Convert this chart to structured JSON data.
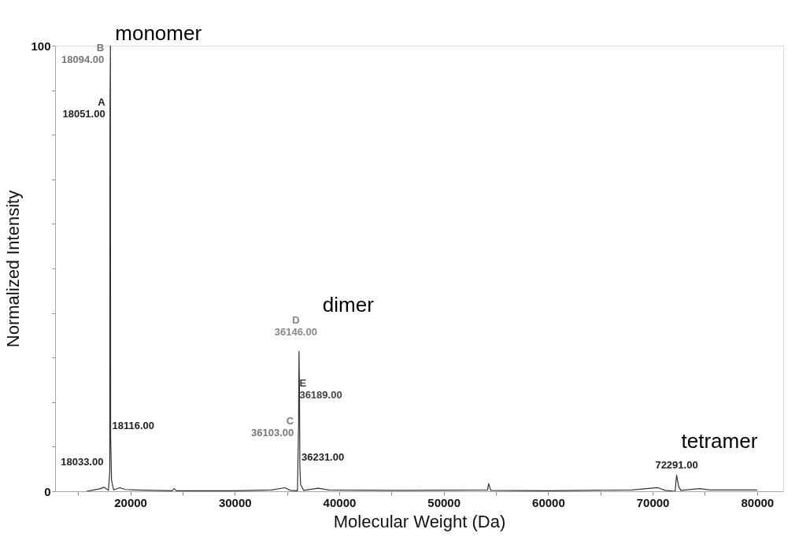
{
  "chart_data": {
    "type": "line",
    "xlabel": "Molecular Weight (Da)",
    "ylabel": "Normalized Intensity",
    "x": [
      15800,
      16500,
      17000,
      17500,
      17900,
      18033,
      18051,
      18094,
      18116,
      18200,
      18400,
      19000,
      19500,
      20500,
      24000,
      24200,
      24400,
      30000,
      33500,
      34800,
      35300,
      36000,
      36103,
      36146,
      36189,
      36231,
      36300,
      36600,
      38000,
      39000,
      45000,
      54200,
      54300,
      54500,
      60000,
      68000,
      70500,
      71200,
      72150,
      72291,
      72500,
      72700,
      74500,
      75500,
      80000
    ],
    "series": [
      {
        "color": "#333333",
        "values": [
          0,
          0.3,
          0.5,
          0.9,
          0.2,
          4.6,
          86,
          100,
          12.4,
          2.5,
          0.3,
          0.8,
          0.4,
          0.3,
          0.1,
          0.6,
          0.1,
          0.1,
          0.3,
          0.8,
          0.2,
          0.1,
          14.5,
          31.4,
          23.6,
          5.3,
          1.5,
          0.2,
          0.7,
          0.3,
          0.2,
          0.3,
          1.7,
          0.2,
          0.1,
          0.3,
          0.8,
          0.2,
          0,
          3.6,
          1,
          0.2,
          0.6,
          0.3,
          0.3
        ]
      }
    ],
    "xlim": [
      12800,
      82500
    ],
    "xticks": [
      {
        "value": 15000,
        "label": null
      },
      20000,
      {
        "value": 25000,
        "label": null
      },
      30000,
      {
        "value": 35000,
        "label": null
      },
      40000,
      {
        "value": 45000,
        "label": null
      },
      50000,
      {
        "value": 55000,
        "label": null
      },
      60000,
      {
        "value": 65000,
        "label": null
      },
      70000,
      {
        "value": 75000,
        "label": null
      },
      80000
    ],
    "ylim": [
      0,
      100
    ],
    "yticks": [
      0,
      {
        "value": 10,
        "label": null
      },
      {
        "value": 20,
        "label": null
      },
      {
        "value": 30,
        "label": null
      },
      {
        "value": 40,
        "label": null
      },
      {
        "value": 50,
        "label": null
      },
      {
        "value": 60,
        "label": null
      },
      {
        "value": 70,
        "label": null
      },
      {
        "value": 80,
        "label": null
      },
      {
        "value": 90,
        "label": null
      },
      100
    ],
    "grid": false,
    "marker": "none",
    "line_style": "solid",
    "annotations": [
      {
        "text": "B\n18094.00",
        "x": 18094,
        "y": 100
      },
      {
        "text": "A\n18051.00",
        "x": 18051,
        "y": 86
      },
      {
        "text": "18116.00",
        "x": 18116,
        "y": 12.4
      },
      {
        "text": "18033.00",
        "x": 18033,
        "y": 4.6
      },
      {
        "text": "C\n36103.00",
        "x": 36103,
        "y": 14.5
      },
      {
        "text": "D\n36146.00",
        "x": 36146,
        "y": 31.4
      },
      {
        "text": "E\n36189.00",
        "x": 36189,
        "y": 23.6
      },
      {
        "text": "36231.00",
        "x": 36231,
        "y": 5.3
      },
      {
        "text": "72291.00",
        "x": 72291,
        "y": 3.6
      },
      {
        "text": "monomer",
        "x": 18094,
        "y": 100
      },
      {
        "text": "dimer",
        "x": 36146,
        "y": 31.4
      },
      {
        "text": "tetramer",
        "x": 72291,
        "y": 3.6
      }
    ]
  }
}
